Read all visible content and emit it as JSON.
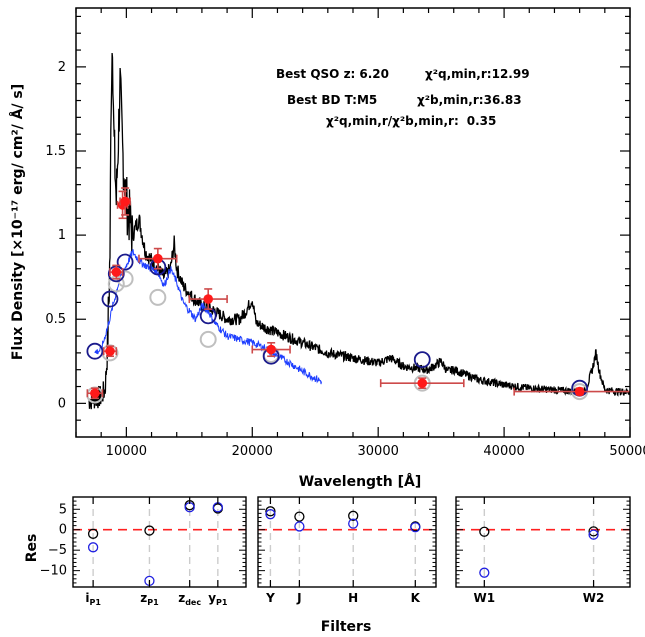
{
  "chart_data": [
    {
      "type": "line",
      "xlabel": "Wavelength [Å]",
      "ylabel": "Flux Density [×10⁻¹⁷ erg/ cm²/ Å/ s]",
      "xlim": [
        6000,
        50000
      ],
      "ylim": [
        -0.2,
        2.35
      ],
      "xticks": [
        10000,
        20000,
        30000,
        40000,
        50000
      ],
      "yticks": [
        0,
        0.5,
        1,
        1.5,
        2
      ],
      "xtick_labels": [
        "10000",
        "20000",
        "30000",
        "40000",
        "50000"
      ],
      "ytick_labels": [
        "0",
        "0.5",
        "1",
        "1.5",
        "2"
      ],
      "annotations": {
        "qso_label": "Best QSO z:",
        "qso_z": "6.20",
        "qso_chi_label": "χ²q,min,r:",
        "qso_chi": "12.99",
        "bd_label": "Best BD T:M5",
        "bd_chi_label": "χ²b,min,r:",
        "bd_chi": "36.83",
        "ratio_label": "χ²q,min,r/χ²b,min,r:",
        "ratio": "0.35"
      },
      "qso_template_knots": [
        [
          7000,
          0.02
        ],
        [
          7500,
          0.03
        ],
        [
          8000,
          0.04
        ],
        [
          8300,
          0.08
        ],
        [
          8500,
          0.3
        ],
        [
          8700,
          0.9
        ],
        [
          8800,
          1.9
        ],
        [
          8900,
          2.2
        ],
        [
          9000,
          1.6
        ],
        [
          9200,
          1.2
        ],
        [
          9500,
          1.9
        ],
        [
          9700,
          1.5
        ],
        [
          10000,
          1.2
        ],
        [
          10500,
          1.0
        ],
        [
          11000,
          1.1
        ],
        [
          11500,
          0.9
        ],
        [
          12000,
          0.85
        ],
        [
          12500,
          0.8
        ],
        [
          13000,
          0.75
        ],
        [
          13500,
          0.8
        ],
        [
          13800,
          0.95
        ],
        [
          14000,
          0.8
        ],
        [
          14500,
          0.7
        ],
        [
          15000,
          0.65
        ],
        [
          16000,
          0.58
        ],
        [
          17000,
          0.55
        ],
        [
          18000,
          0.5
        ],
        [
          19000,
          0.5
        ],
        [
          19500,
          0.55
        ],
        [
          20000,
          0.62
        ],
        [
          20300,
          0.48
        ],
        [
          21000,
          0.45
        ],
        [
          22000,
          0.42
        ],
        [
          24000,
          0.36
        ],
        [
          26000,
          0.3
        ],
        [
          28000,
          0.27
        ],
        [
          30000,
          0.24
        ],
        [
          31000,
          0.27
        ],
        [
          32000,
          0.22
        ],
        [
          34000,
          0.2
        ],
        [
          35000,
          0.25
        ],
        [
          35500,
          0.19
        ],
        [
          36000,
          0.2
        ],
        [
          38000,
          0.14
        ],
        [
          40000,
          0.11
        ],
        [
          42000,
          0.09
        ],
        [
          44000,
          0.08
        ],
        [
          46000,
          0.07
        ],
        [
          46500,
          0.08
        ],
        [
          47000,
          0.2
        ],
        [
          47300,
          0.3
        ],
        [
          47600,
          0.18
        ],
        [
          48000,
          0.08
        ],
        [
          49000,
          0.07
        ],
        [
          50000,
          0.07
        ]
      ],
      "bd_template_knots": [
        [
          7500,
          0.3
        ],
        [
          8000,
          0.32
        ],
        [
          8500,
          0.45
        ],
        [
          9000,
          0.6
        ],
        [
          9500,
          0.75
        ],
        [
          10000,
          0.82
        ],
        [
          10500,
          0.9
        ],
        [
          11000,
          0.85
        ],
        [
          11500,
          0.82
        ],
        [
          12000,
          0.8
        ],
        [
          12500,
          0.78
        ],
        [
          13000,
          0.7
        ],
        [
          13500,
          0.8
        ],
        [
          14000,
          0.72
        ],
        [
          14500,
          0.6
        ],
        [
          15000,
          0.55
        ],
        [
          15500,
          0.5
        ],
        [
          16000,
          0.58
        ],
        [
          16500,
          0.55
        ],
        [
          17000,
          0.48
        ],
        [
          18000,
          0.4
        ],
        [
          19000,
          0.38
        ],
        [
          20000,
          0.36
        ],
        [
          21000,
          0.33
        ],
        [
          22000,
          0.28
        ],
        [
          23000,
          0.24
        ],
        [
          24000,
          0.19
        ],
        [
          25000,
          0.15
        ],
        [
          25500,
          0.13
        ]
      ],
      "observed_photometry": [
        {
          "x": 7500,
          "y": 0.06,
          "xerr": 600,
          "yerr": 0.03
        },
        {
          "x": 8700,
          "y": 0.31,
          "xerr": 500,
          "yerr": 0.03
        },
        {
          "x": 9200,
          "y": 0.78,
          "xerr": 500,
          "yerr": 0.04
        },
        {
          "x": 9700,
          "y": 1.18,
          "xerr": 400,
          "yerr": 0.08
        },
        {
          "x": 9900,
          "y": 1.2,
          "xerr": 400,
          "yerr": 0.08
        },
        {
          "x": 12500,
          "y": 0.86,
          "xerr": 1500,
          "yerr": 0.06
        },
        {
          "x": 16500,
          "y": 0.62,
          "xerr": 1500,
          "yerr": 0.06
        },
        {
          "x": 21500,
          "y": 0.32,
          "xerr": 1500,
          "yerr": 0.04
        },
        {
          "x": 33500,
          "y": 0.12,
          "xerr": 3300,
          "yerr": 0.03
        },
        {
          "x": 46000,
          "y": 0.07,
          "xerr": 5200,
          "yerr": 0.02
        }
      ],
      "qso_model_photometry": [
        {
          "x": 7500,
          "y": 0.31
        },
        {
          "x": 8700,
          "y": 0.62
        },
        {
          "x": 9200,
          "y": 0.77
        },
        {
          "x": 9900,
          "y": 0.84
        },
        {
          "x": 12500,
          "y": 0.81
        },
        {
          "x": 16500,
          "y": 0.52
        },
        {
          "x": 21500,
          "y": 0.28
        },
        {
          "x": 33500,
          "y": 0.26
        },
        {
          "x": 46000,
          "y": 0.09
        }
      ],
      "bd_model_photometry": [
        {
          "x": 7500,
          "y": 0.05
        },
        {
          "x": 8700,
          "y": 0.3
        },
        {
          "x": 9200,
          "y": 0.71
        },
        {
          "x": 9900,
          "y": 0.74
        },
        {
          "x": 12500,
          "y": 0.63
        },
        {
          "x": 16500,
          "y": 0.38
        },
        {
          "x": 21500,
          "y": 0.29
        },
        {
          "x": 33500,
          "y": 0.12
        },
        {
          "x": 46000,
          "y": 0.07
        }
      ],
      "colors": {
        "qso_template": "#000000",
        "bd_template": "#1f3fff",
        "observed": "#ff1a1a",
        "errorbar": "#cd4a4a",
        "qso_model": "#1a1a8c",
        "bd_model": "#bfbfbf"
      }
    },
    {
      "type": "scatter",
      "xlabel": "Filters",
      "ylabel": "Res",
      "ylim": [
        -14,
        8
      ],
      "yticks": [
        5,
        0,
        -5,
        -10
      ],
      "ytick_labels": [
        "5",
        "0",
        "−5",
        "−10"
      ],
      "colors": {
        "zero_line": "#ff2020",
        "guide": "#cccccc",
        "bd": "#000000",
        "qso": "#2020e0"
      },
      "panels": [
        {
          "name": "optical",
          "xrange": [
            0,
            4.3
          ],
          "filters": [
            {
              "x": 0.5,
              "label": "i",
              "sub": "P1"
            },
            {
              "x": 1.9,
              "label": "z",
              "sub": "P1"
            },
            {
              "x": 2.9,
              "label": "z",
              "sub": "dec"
            },
            {
              "x": 3.6,
              "label": "y",
              "sub": "P1"
            }
          ],
          "bd_residuals": [
            {
              "x": 0.5,
              "y": -1.0
            },
            {
              "x": 1.9,
              "y": -0.2
            },
            {
              "x": 2.9,
              "y": 6.0
            },
            {
              "x": 3.6,
              "y": 5.2
            }
          ],
          "qso_residuals": [
            {
              "x": 0.5,
              "y": -4.3
            },
            {
              "x": 1.9,
              "y": -12.5
            },
            {
              "x": 2.9,
              "y": 5.5
            },
            {
              "x": 3.6,
              "y": 5.5
            }
          ]
        },
        {
          "name": "near-infrared",
          "xrange": [
            0,
            4.3
          ],
          "filters": [
            {
              "x": 0.3,
              "label": "Y",
              "sub": ""
            },
            {
              "x": 1.0,
              "label": "J",
              "sub": ""
            },
            {
              "x": 2.3,
              "label": "H",
              "sub": ""
            },
            {
              "x": 3.8,
              "label": "K",
              "sub": ""
            }
          ],
          "bd_residuals": [
            {
              "x": 0.3,
              "y": 4.5
            },
            {
              "x": 1.0,
              "y": 3.2
            },
            {
              "x": 2.3,
              "y": 3.4
            },
            {
              "x": 3.8,
              "y": 0.8
            }
          ],
          "qso_residuals": [
            {
              "x": 0.3,
              "y": 3.8
            },
            {
              "x": 1.0,
              "y": 0.8
            },
            {
              "x": 2.3,
              "y": 1.5
            },
            {
              "x": 3.8,
              "y": 0.6
            }
          ]
        },
        {
          "name": "mid-infrared",
          "xrange": [
            0,
            4.3
          ],
          "filters": [
            {
              "x": 0.7,
              "label": "W1",
              "sub": ""
            },
            {
              "x": 3.4,
              "label": "W2",
              "sub": ""
            }
          ],
          "bd_residuals": [
            {
              "x": 0.7,
              "y": -0.5
            },
            {
              "x": 3.4,
              "y": -0.4
            }
          ],
          "qso_residuals": [
            {
              "x": 0.7,
              "y": -10.5
            },
            {
              "x": 3.4,
              "y": -1.2
            }
          ]
        }
      ]
    }
  ]
}
